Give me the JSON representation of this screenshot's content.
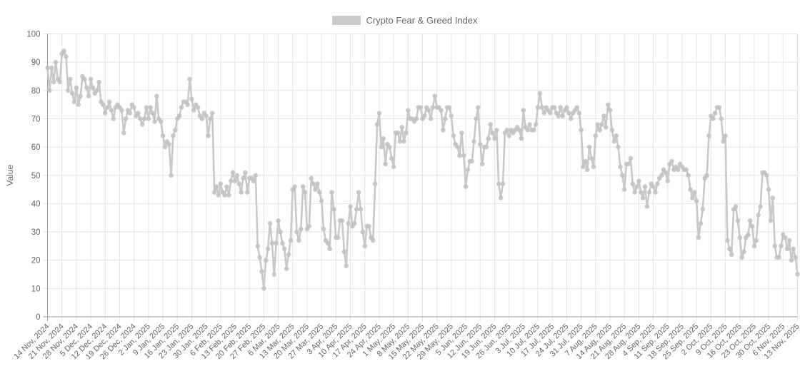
{
  "legend": {
    "label": "Crypto Fear & Greed Index",
    "swatch_color": "#c9c9c9"
  },
  "y_axis": {
    "title": "Value",
    "tick_labels": [
      "0",
      "10",
      "20",
      "30",
      "40",
      "50",
      "60",
      "70",
      "80",
      "90",
      "100"
    ]
  },
  "x_axis": {
    "tick_every_days": 7,
    "tick_labels": [
      "14 Nov, 2024",
      "21 Nov, 2024",
      "28 Nov, 2024",
      "5 Dec, 2024",
      "12 Dec, 2024",
      "19 Dec, 2024",
      "26 Dec, 2024",
      "2 Jan, 2025",
      "9 Jan, 2025",
      "16 Jan, 2025",
      "23 Jan, 2025",
      "30 Jan, 2025",
      "6 Feb, 2025",
      "13 Feb, 2025",
      "20 Feb, 2025",
      "27 Feb, 2025",
      "6 Mar, 2025",
      "13 Mar, 2025",
      "20 Mar, 2025",
      "27 Mar, 2025",
      "3 Apr, 2025",
      "10 Apr, 2025",
      "17 Apr, 2025",
      "24 Apr, 2025",
      "1 May, 2025",
      "8 May, 2025",
      "15 May, 2025",
      "22 May, 2025",
      "29 May, 2025",
      "5 Jun, 2025",
      "12 Jun, 2025",
      "19 Jun, 2025",
      "26 Jun, 2025",
      "3 Jul, 2025",
      "10 Jul, 2025",
      "17 Jul, 2025",
      "24 Jul, 2025",
      "31 Jul, 2025",
      "7 Aug, 2025",
      "14 Aug, 2025",
      "21 Aug, 2025",
      "28 Aug, 2025",
      "4 Sep, 2025",
      "11 Sep, 2025",
      "18 Sep, 2025",
      "25 Sep, 2025",
      "2 Oct, 2025",
      "9 Oct, 2025",
      "16 Oct, 2025",
      "23 Oct, 2025",
      "30 Oct, 2025",
      "6 Nov, 2025",
      "13 Nov, 2025"
    ]
  },
  "chart_data": {
    "type": "line",
    "title": "Crypto Fear & Greed Index",
    "xlabel": "",
    "ylabel": "Value",
    "ylim": [
      0,
      100
    ],
    "y_tick_step": 10,
    "grid": true,
    "legend_position": "top",
    "marker": "circle",
    "line_color": "#c9c9c9",
    "marker_color": "#c2c2c2",
    "x_start": "14 Nov, 2024",
    "x_end": "13 Nov, 2025",
    "frequency": "daily",
    "values": [
      88,
      80,
      88,
      83,
      90,
      84,
      83,
      93,
      94,
      92,
      80,
      84,
      79,
      76,
      81,
      75,
      78,
      85,
      84,
      81,
      78,
      84,
      81,
      79,
      80,
      83,
      76,
      75,
      72,
      74,
      76,
      73,
      70,
      74,
      75,
      74,
      73,
      65,
      70,
      73,
      72,
      75,
      74,
      71,
      72,
      70,
      68,
      70,
      74,
      70,
      74,
      72,
      69,
      78,
      70,
      69,
      64,
      60,
      62,
      61,
      50,
      64,
      66,
      70,
      71,
      74,
      76,
      76,
      75,
      84,
      77,
      73,
      75,
      74,
      71,
      70,
      72,
      71,
      64,
      70,
      72,
      44,
      46,
      43,
      47,
      44,
      43,
      46,
      43,
      48,
      51,
      48,
      50,
      47,
      44,
      49,
      51,
      44,
      49,
      49,
      48,
      50,
      25,
      21,
      16,
      10,
      20,
      24,
      33,
      26,
      15,
      26,
      34,
      30,
      26,
      24,
      17,
      22,
      27,
      45,
      46,
      30,
      27,
      31,
      46,
      44,
      31,
      32,
      49,
      47,
      45,
      47,
      44,
      41,
      31,
      27,
      26,
      24,
      44,
      38,
      28,
      28,
      34,
      34,
      23,
      18,
      33,
      39,
      32,
      33,
      38,
      44,
      38,
      30,
      25,
      32,
      32,
      28,
      27,
      47,
      68,
      72,
      60,
      63,
      54,
      61,
      60,
      56,
      53,
      65,
      65,
      62,
      67,
      62,
      65,
      73,
      70,
      70,
      69,
      70,
      74,
      74,
      70,
      71,
      74,
      73,
      70,
      74,
      78,
      74,
      74,
      73,
      66,
      70,
      74,
      74,
      71,
      64,
      61,
      60,
      57,
      65,
      57,
      46,
      52,
      55,
      55,
      62,
      70,
      74,
      61,
      54,
      60,
      60,
      63,
      68,
      65,
      63,
      66,
      47,
      42,
      47,
      65,
      66,
      64,
      66,
      65,
      66,
      67,
      66,
      63,
      73,
      67,
      66,
      68,
      66,
      66,
      68,
      74,
      79,
      74,
      72,
      74,
      73,
      72,
      74,
      74,
      72,
      71,
      74,
      71,
      73,
      74,
      72,
      70,
      72,
      73,
      74,
      72,
      66,
      53,
      55,
      52,
      60,
      56,
      53,
      64,
      68,
      66,
      68,
      71,
      67,
      75,
      73,
      66,
      62,
      64,
      60,
      53,
      50,
      45,
      54,
      54,
      56,
      47,
      44,
      46,
      48,
      44,
      42,
      46,
      39,
      44,
      47,
      46,
      44,
      47,
      49,
      50,
      52,
      51,
      48,
      54,
      55,
      52,
      53,
      52,
      54,
      53,
      52,
      52,
      50,
      45,
      42,
      44,
      41,
      28,
      33,
      38,
      49,
      50,
      64,
      71,
      70,
      72,
      74,
      74,
      70,
      62,
      64,
      27,
      24,
      22,
      38,
      39,
      34,
      28,
      21,
      23,
      28,
      29,
      34,
      32,
      25,
      27,
      36,
      39,
      51,
      51,
      50,
      45,
      34,
      42,
      25,
      21,
      21,
      25,
      29,
      28,
      24,
      27,
      20,
      24,
      21,
      15
    ]
  },
  "style": {
    "grid_color": "#e4e4e4",
    "axis_color": "#9a9a9a",
    "tick_text_color": "#666666",
    "background": "#ffffff"
  }
}
